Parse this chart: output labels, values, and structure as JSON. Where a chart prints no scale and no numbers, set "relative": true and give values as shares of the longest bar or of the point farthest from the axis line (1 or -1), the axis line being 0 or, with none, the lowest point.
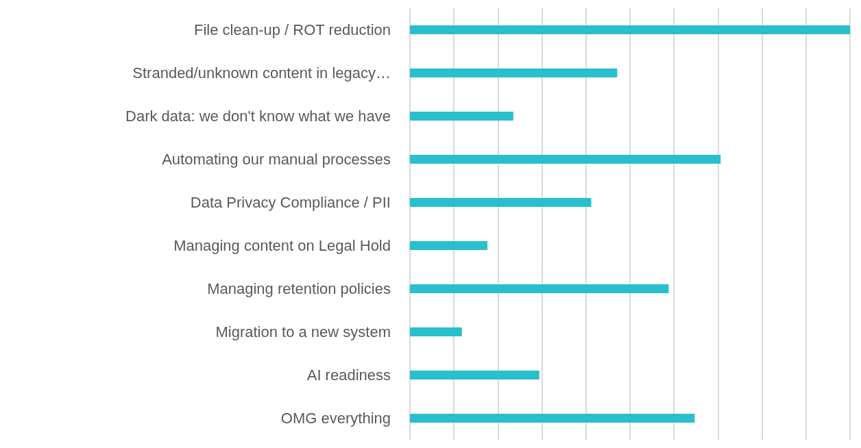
{
  "chart_data": {
    "type": "bar",
    "orientation": "horizontal",
    "relative": true,
    "grid": "x",
    "color": "#29bfcc",
    "categories": [
      "File clean-up / ROT reduction",
      "Stranded/unknown content in legacy…",
      "Dark data: we don't know what we have",
      "Automating our manual processes",
      "Data Privacy Compliance / PII",
      "Managing content on Legal Hold",
      "Managing retention policies",
      "Migration to a new system",
      "AI readiness",
      "OMG everything"
    ],
    "values": [
      1,
      0.471,
      0.235,
      0.706,
      0.412,
      0.176,
      0.588,
      0.118,
      0.294,
      0.647
    ]
  }
}
